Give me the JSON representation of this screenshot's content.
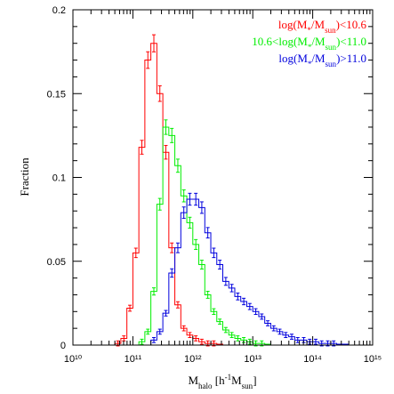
{
  "chart_data": {
    "type": "histogram",
    "x_scale": "log",
    "xlim": [
      10,
      15
    ],
    "ylim": [
      0,
      0.2
    ],
    "x_tick_labels": [
      "10¹⁰",
      "10¹¹",
      "10¹²",
      "10¹³",
      "10¹⁴",
      "10¹⁵"
    ],
    "x_tick_values": [
      10,
      11,
      12,
      13,
      14,
      15
    ],
    "y_tick_labels": [
      "0",
      "0.05",
      "0.1",
      "0.15",
      "0.2"
    ],
    "y_tick_values": [
      0,
      0.05,
      0.1,
      0.15,
      0.2
    ],
    "xlabel": {
      "main": "M",
      "sub": "halo",
      "unit_open": " [h",
      "unit_sup": "-1",
      "unit_mid": "M",
      "unit_sub": "sun",
      "unit_close": "]"
    },
    "ylabel": "Fraction",
    "bin_edges": [
      10.0,
      10.1,
      10.2,
      10.3,
      10.4,
      10.5,
      10.6,
      10.7,
      10.8,
      10.9,
      11.0,
      11.1,
      11.2,
      11.3,
      11.4,
      11.5,
      11.6,
      11.7,
      11.8,
      11.9,
      12.0,
      12.1,
      12.2,
      12.3,
      12.4,
      12.5,
      12.6,
      12.7,
      12.8,
      12.9,
      13.0,
      13.1,
      13.2,
      13.3,
      13.4,
      13.5,
      13.6,
      13.7,
      13.8,
      13.9,
      14.0,
      14.1,
      14.2,
      14.3,
      14.4,
      14.5,
      14.6,
      14.7,
      14.8,
      14.9,
      15.0
    ],
    "series": [
      {
        "name": "log(M*/Msun)<10.6",
        "color": "#ff0000",
        "values": [
          0,
          0,
          0,
          0,
          0,
          0,
          0,
          0.001,
          0.004,
          0.022,
          0.055,
          0.118,
          0.17,
          0.18,
          0.15,
          0.115,
          0.058,
          0.024,
          0.01,
          0.006,
          0.004,
          0.002,
          0.001,
          0.001,
          0.0005,
          0,
          0,
          0,
          0,
          0,
          0,
          0,
          0,
          0,
          0,
          0,
          0,
          0,
          0,
          0,
          0,
          0,
          0,
          0,
          0,
          0,
          0,
          0,
          0,
          0
        ]
      },
      {
        "name": "10.6<log(M*/Msun)<11.0",
        "color": "#00ee00",
        "values": [
          0,
          0,
          0,
          0,
          0,
          0,
          0,
          0,
          0,
          0,
          0,
          0.002,
          0.008,
          0.032,
          0.084,
          0.13,
          0.125,
          0.107,
          0.089,
          0.073,
          0.06,
          0.048,
          0.03,
          0.02,
          0.014,
          0.009,
          0.006,
          0.004,
          0.003,
          0.002,
          0.001,
          0.001,
          0.0005,
          0,
          0,
          0,
          0,
          0,
          0,
          0,
          0,
          0,
          0,
          0,
          0,
          0,
          0,
          0,
          0,
          0
        ]
      },
      {
        "name": "log(M*/Msun)>11.0",
        "color": "#0000dd",
        "values": [
          0,
          0,
          0,
          0,
          0,
          0,
          0,
          0,
          0,
          0,
          0,
          0,
          0,
          0.003,
          0.008,
          0.019,
          0.043,
          0.058,
          0.079,
          0.087,
          0.087,
          0.082,
          0.067,
          0.055,
          0.048,
          0.038,
          0.034,
          0.029,
          0.026,
          0.023,
          0.02,
          0.017,
          0.013,
          0.01,
          0.008,
          0.006,
          0.005,
          0.003,
          0.003,
          0.002,
          0.002,
          0.001,
          0.001,
          0.001,
          0.0005,
          0.0005,
          0,
          0,
          0,
          0
        ]
      }
    ],
    "legend": {
      "placement": "top-right",
      "entries": [
        {
          "pre": "log(M",
          "sub1": "*",
          "mid": "/M",
          "sub2": "sun",
          "post": ")<10.6",
          "color": "#ff0000"
        },
        {
          "pre": "10.6<log(M",
          "sub1": "*",
          "mid": "/M",
          "sub2": "sun",
          "post": ")<11.0",
          "color": "#00ee00"
        },
        {
          "pre": "log(M",
          "sub1": "*",
          "mid": "/M",
          "sub2": "sun",
          "post": ")>11.0",
          "color": "#0000dd"
        }
      ]
    }
  }
}
